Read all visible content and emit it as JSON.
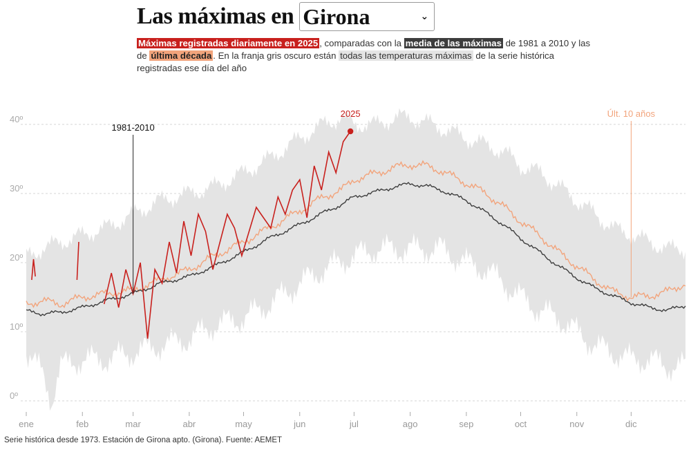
{
  "header": {
    "title": "Las máximas en",
    "city": "Girona",
    "desc": {
      "hl1": "Máximas registradas diariamente en 2025",
      "t1": ", comparadas con la ",
      "hl2": "media de las máximas",
      "t2": " de 1981 a 2010 y las de ",
      "hl3": "última década",
      "t3": ". En la franja gris oscuro están ",
      "hl4": "todas las temperaturas máximas",
      "t4": " de la serie histórica registradas ese día del año"
    }
  },
  "footer": {
    "source": "Serie histórica desde 1973. Estación de Girona apto. (Girona). Fuente: AEMET"
  },
  "chart_data": {
    "type": "line",
    "x_unit": "day of year",
    "xlim": [
      1,
      365
    ],
    "ylim": [
      0,
      43
    ],
    "y_ticks": [
      0,
      10,
      20,
      30,
      40
    ],
    "y_tick_labels": [
      "0º",
      "10º",
      "20º",
      "30º",
      "40º"
    ],
    "x_ticks": [
      1,
      32,
      60,
      91,
      121,
      152,
      182,
      213,
      244,
      274,
      305,
      335
    ],
    "x_tick_labels": [
      "ene",
      "feb",
      "mar",
      "abr",
      "may",
      "jun",
      "jul",
      "ago",
      "sep",
      "oct",
      "nov",
      "dic"
    ],
    "grid": true,
    "colors": {
      "y2025": "#c8201d",
      "mean": "#3d3d3d",
      "decade": "#f2a47c",
      "band": "#e4e4e4"
    },
    "annotations": [
      {
        "label": "1981-2010",
        "x": 60,
        "series": "mean"
      },
      {
        "label": "2025",
        "x": 180,
        "series": "y2025"
      },
      {
        "label": "Últ. 10 años",
        "x": 335,
        "series": "decade"
      }
    ],
    "band_max": {
      "x": [
        1,
        10,
        20,
        32,
        45,
        60,
        75,
        91,
        105,
        121,
        135,
        152,
        165,
        175,
        182,
        195,
        205,
        213,
        225,
        235,
        244,
        255,
        265,
        274,
        285,
        295,
        305,
        315,
        325,
        335,
        345,
        355,
        365
      ],
      "y": [
        21,
        22,
        23,
        24,
        25,
        27,
        29,
        30,
        31,
        33,
        35,
        38,
        40,
        41,
        40,
        40,
        41,
        41,
        40,
        39,
        38,
        37,
        36,
        34,
        33,
        31,
        29,
        27,
        25,
        24,
        23,
        22,
        22
      ]
    },
    "band_min": {
      "x": [
        1,
        10,
        15,
        20,
        32,
        45,
        60,
        75,
        91,
        105,
        121,
        135,
        152,
        165,
        182,
        195,
        213,
        230,
        244,
        255,
        265,
        274,
        285,
        295,
        305,
        315,
        325,
        335,
        345,
        355,
        365
      ],
      "y": [
        7,
        4,
        0,
        5,
        6,
        6,
        7,
        8,
        9,
        11,
        12,
        14,
        17,
        19,
        21,
        22,
        22,
        22,
        20,
        19,
        17,
        15,
        13,
        12,
        10,
        8,
        7,
        6,
        6,
        5,
        5
      ]
    },
    "series": [
      {
        "name": "1981-2010",
        "x": [
          1,
          10,
          20,
          32,
          45,
          60,
          75,
          91,
          105,
          121,
          135,
          152,
          165,
          175,
          182,
          195,
          205,
          213,
          222,
          230,
          244,
          255,
          265,
          274,
          285,
          295,
          305,
          315,
          325,
          335,
          345,
          355,
          365
        ],
        "y": [
          13,
          12.6,
          12.8,
          13.5,
          14.5,
          15.5,
          17,
          18,
          19.5,
          21.5,
          23.5,
          25.5,
          27.2,
          28.4,
          29.5,
          30.3,
          31,
          31.4,
          31.1,
          30.5,
          29,
          27.2,
          25.4,
          23.5,
          21.4,
          19.5,
          17.8,
          16.3,
          15.2,
          14.2,
          13.5,
          13.1,
          13.8
        ]
      },
      {
        "name": "Últ. 10 años",
        "x": [
          1,
          10,
          20,
          32,
          45,
          60,
          75,
          91,
          105,
          121,
          135,
          152,
          165,
          175,
          182,
          195,
          205,
          213,
          222,
          230,
          244,
          255,
          265,
          274,
          285,
          295,
          305,
          315,
          325,
          335,
          345,
          355,
          365
        ],
        "y": [
          14,
          14.5,
          14,
          15,
          15.5,
          16,
          17.5,
          19,
          21,
          23,
          25,
          27.5,
          29.5,
          30.5,
          32,
          33,
          33.8,
          34.2,
          34,
          33.3,
          31.5,
          30,
          28,
          26,
          23.8,
          21.5,
          19.5,
          17.5,
          15.8,
          15,
          15.2,
          15.8,
          17
        ]
      },
      {
        "name": "2025",
        "segments": [
          {
            "x": [
              4,
              5,
              6
            ],
            "y": [
              17.5,
              20.5,
              18
            ]
          },
          {
            "x": [
              29,
              30
            ],
            "y": [
              17.5,
              23
            ]
          },
          {
            "x": [
              44,
              48,
              52,
              56,
              60,
              64,
              68,
              72,
              76,
              80,
              84,
              88,
              92,
              96,
              100,
              104,
              108,
              112,
              116,
              120,
              124,
              128,
              132,
              136,
              140,
              144,
              148,
              152,
              156,
              160,
              164,
              168,
              172,
              176,
              180
            ],
            "y": [
              14,
              18.5,
              13.5,
              19,
              15.5,
              20,
              9,
              19,
              17,
              23,
              18.5,
              26,
              21,
              27,
              24.5,
              19,
              23,
              27,
              25,
              21,
              24.5,
              28,
              26.5,
              25,
              29.5,
              27,
              30.5,
              32,
              26.5,
              34,
              30.5,
              36,
              33,
              37.5,
              39
            ]
          }
        ],
        "last_point": {
          "x": 180,
          "y": 39
        }
      }
    ]
  }
}
